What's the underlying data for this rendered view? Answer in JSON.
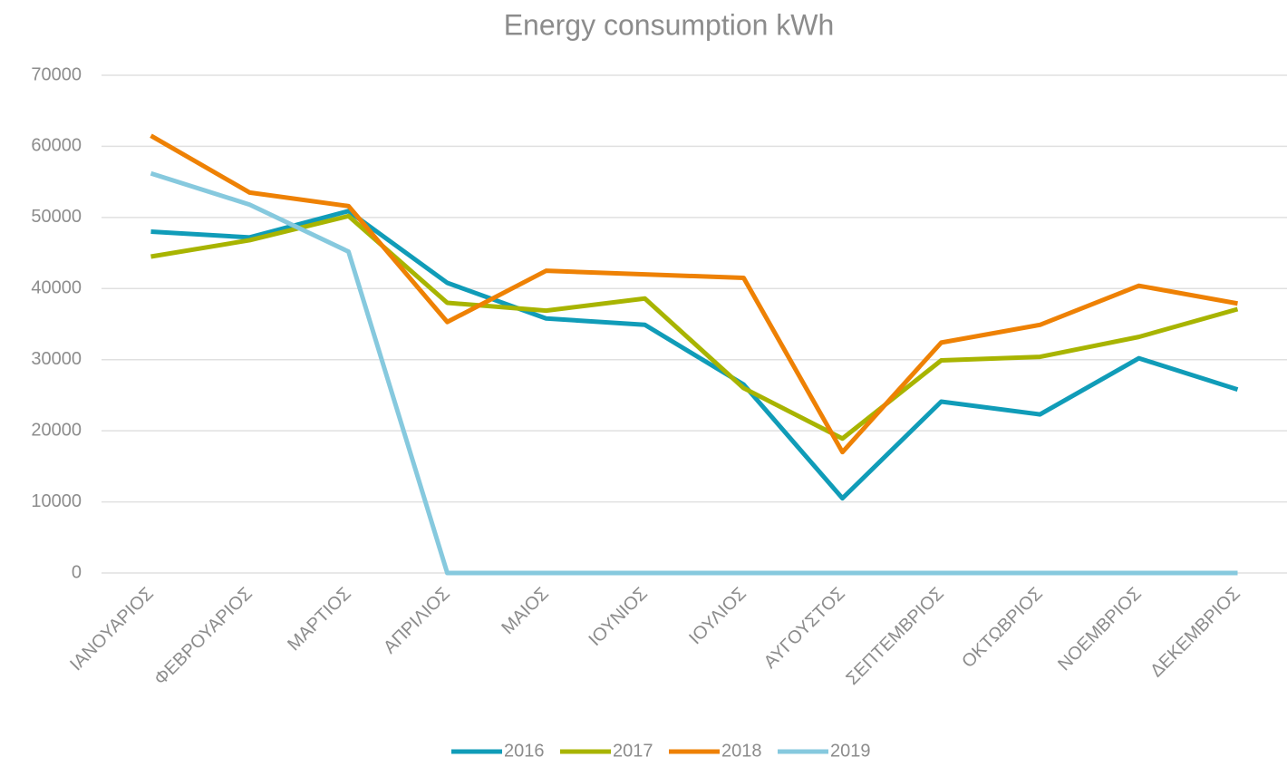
{
  "chart_data": {
    "type": "line",
    "title": "Energy consumption kWh",
    "categories": [
      "ΙΑΝΟΥΑΡΙΟΣ",
      "ΦΕΒΡΟΥΑΡΙΟΣ",
      "ΜΑΡΤΙΟΣ",
      "ΑΠΡΙΛΙΟΣ",
      "ΜΑΙΟΣ",
      "ΙΟΥΝΙΟΣ",
      "ΙΟΥΛΙΟΣ",
      "ΑΥΓΟΥΣΤΟΣ",
      "ΣΕΠΤΕΜΒΡΙΟΣ",
      "ΟΚΤΩΒΡΙΟΣ",
      "ΝΟΕΜΒΡΙΟΣ",
      "ΔΕΚΕΜΒΡΙΟΣ"
    ],
    "series": [
      {
        "name": "2016",
        "color": "#109cb8",
        "values": [
          48000,
          47200,
          50900,
          40800,
          35800,
          34900,
          26500,
          10500,
          24100,
          22300,
          30200,
          25800
        ]
      },
      {
        "name": "2017",
        "color": "#a8b400",
        "values": [
          44500,
          46800,
          50200,
          38000,
          36900,
          38600,
          26000,
          18900,
          29900,
          30400,
          33200,
          37100
        ]
      },
      {
        "name": "2018",
        "color": "#ee8104",
        "values": [
          61500,
          53500,
          51600,
          35300,
          42500,
          42000,
          41500,
          17000,
          32400,
          34900,
          40400,
          37900
        ]
      },
      {
        "name": "2019",
        "color": "#86c9de",
        "values": [
          56200,
          51800,
          45200,
          0,
          0,
          0,
          0,
          0,
          0,
          0,
          0,
          0
        ]
      }
    ],
    "ylim": [
      0,
      70000
    ],
    "yticks": [
      0,
      10000,
      20000,
      30000,
      40000,
      50000,
      60000,
      70000
    ],
    "grid": true,
    "legend": "bottom"
  }
}
